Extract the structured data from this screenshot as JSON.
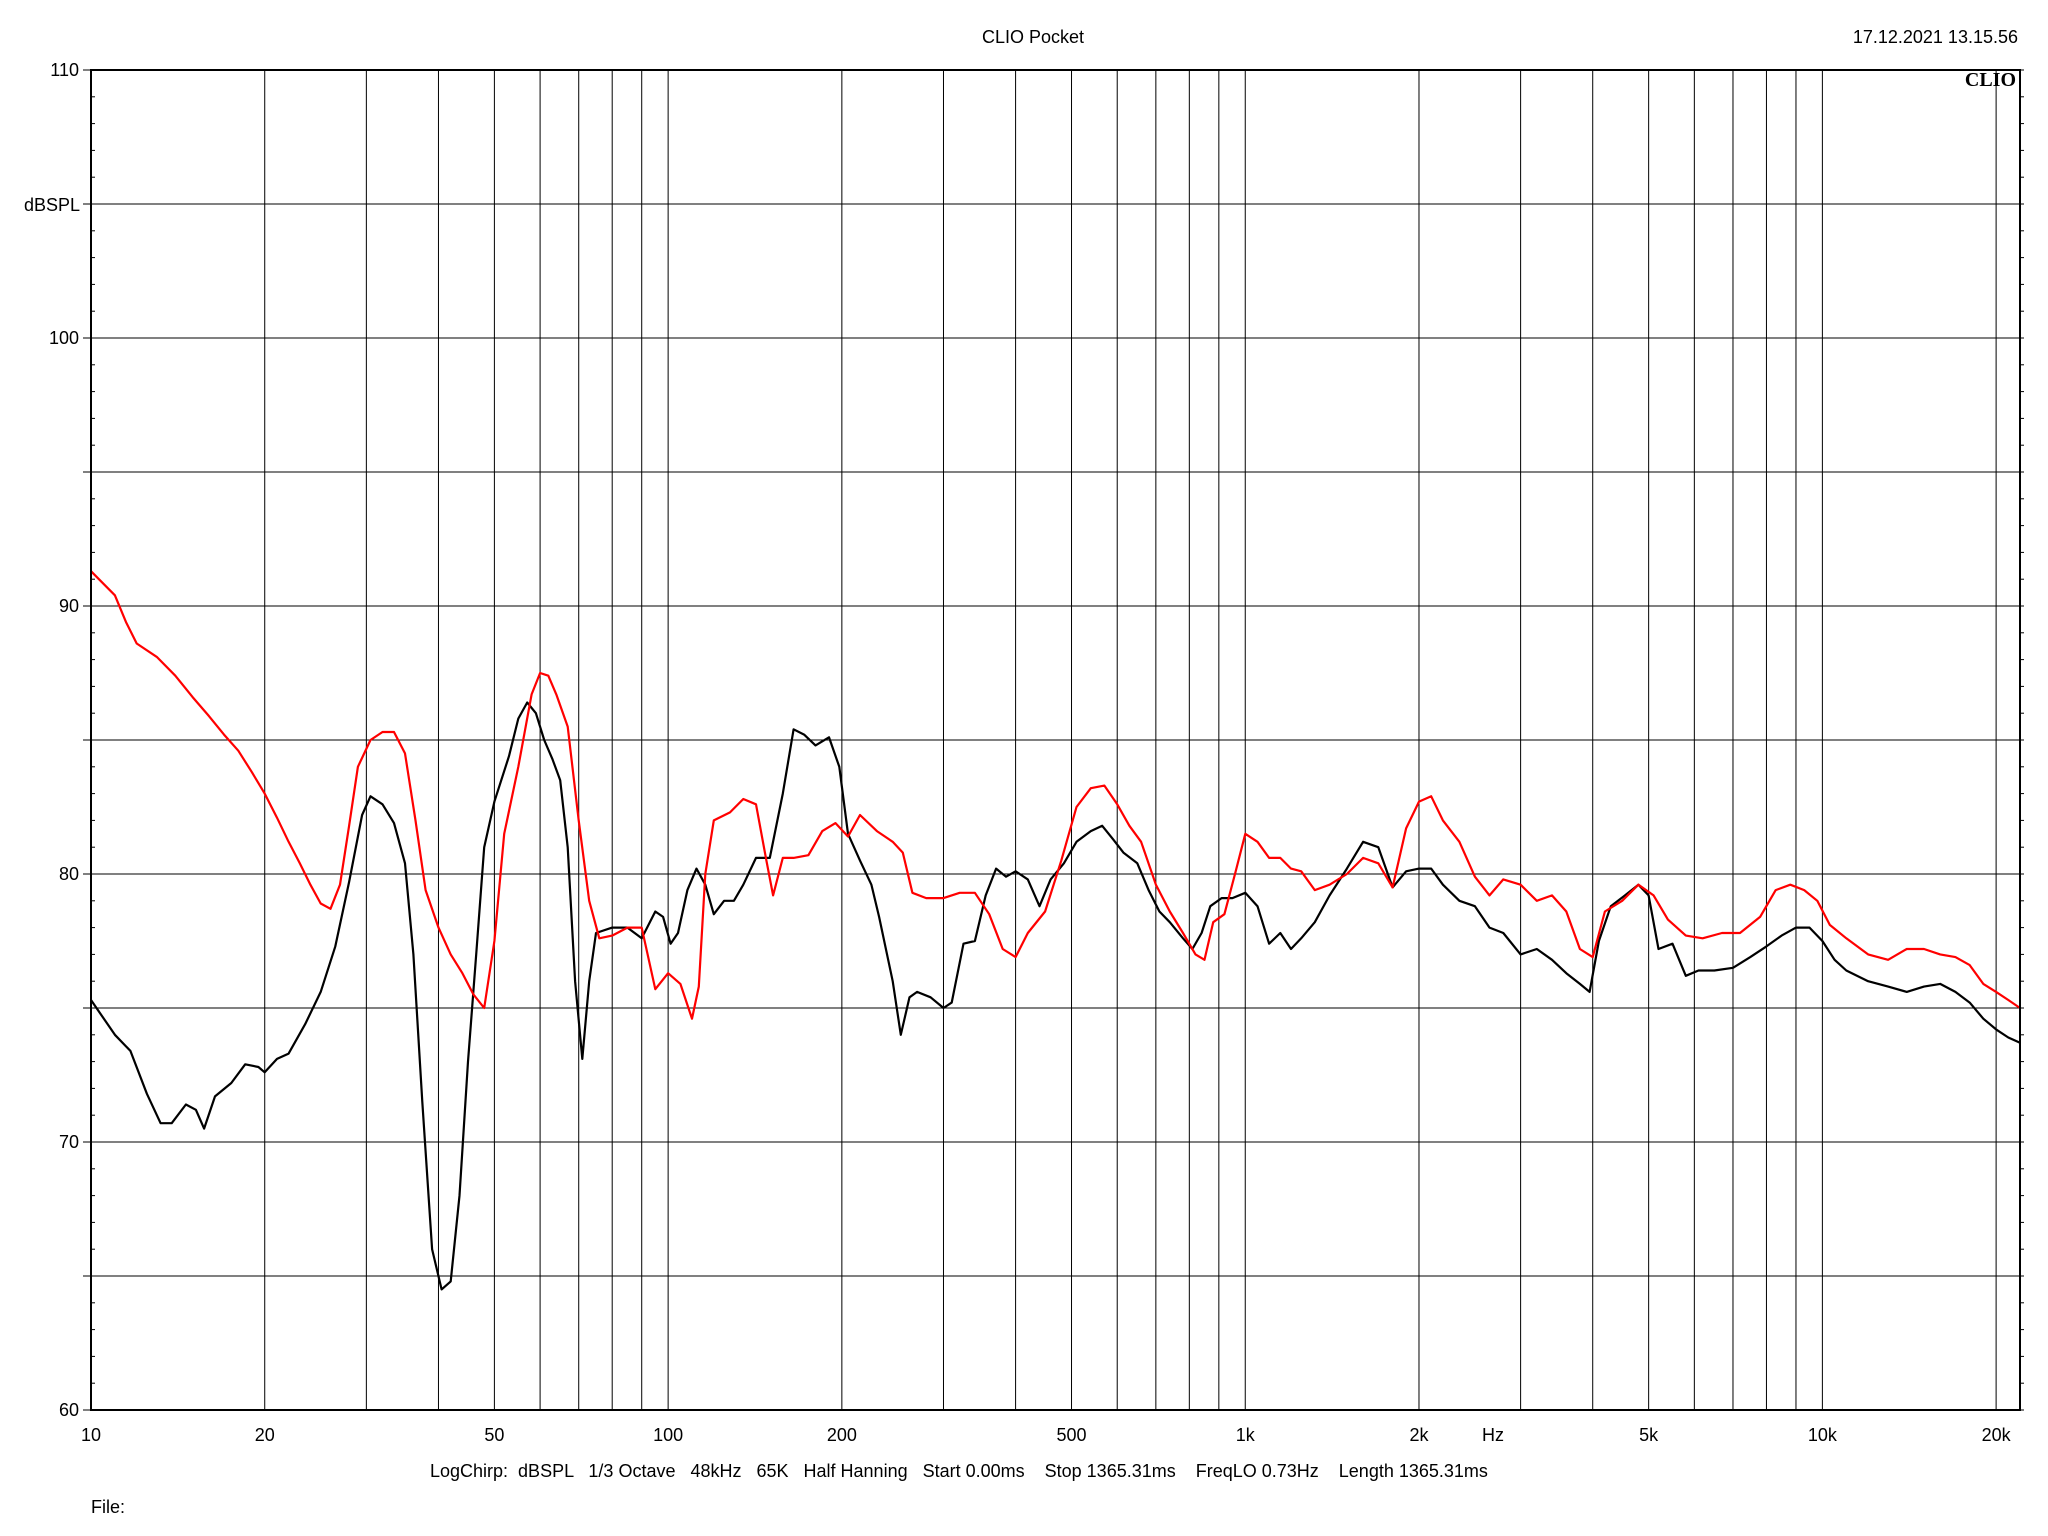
{
  "header": {
    "title": "CLIO Pocket",
    "timestamp": "17.12.2021 13.15.56",
    "logo": "CLIO"
  },
  "footer": {
    "settings": "LogChirp:  dBSPL   1/3 Octave   48kHz   65K   Half Hanning   Start 0.00ms    Stop 1365.31ms    FreqLO 0.73Hz    Length 1365.31ms",
    "file_label": "File:"
  },
  "chart_data": {
    "type": "line",
    "title": "CLIO Pocket",
    "xlabel": "Hz",
    "ylabel": "dBSPL",
    "x_scale": "log",
    "xlim": [
      10,
      22000
    ],
    "ylim": [
      60,
      110
    ],
    "grid": true,
    "y_ticks": [
      60,
      70,
      80,
      90,
      100,
      110
    ],
    "x_ticks": [
      {
        "value": 10,
        "label": "10"
      },
      {
        "value": 20,
        "label": "20"
      },
      {
        "value": 50,
        "label": "50"
      },
      {
        "value": 100,
        "label": "100"
      },
      {
        "value": 200,
        "label": "200"
      },
      {
        "value": 500,
        "label": "500"
      },
      {
        "value": 1000,
        "label": "1k"
      },
      {
        "value": 2000,
        "label": "2k"
      },
      {
        "value": 5000,
        "label": "5k"
      },
      {
        "value": 10000,
        "label": "10k"
      },
      {
        "value": 20000,
        "label": "20k"
      }
    ],
    "colors": {
      "black_trace": "#000000",
      "red_trace": "#ff0000",
      "grid": "#000000"
    },
    "series": [
      {
        "color": "#000000",
        "points": [
          [
            10,
            75.3
          ],
          [
            11,
            74.0
          ],
          [
            11.7,
            73.4
          ],
          [
            12.5,
            71.8
          ],
          [
            13.2,
            70.7
          ],
          [
            13.8,
            70.7
          ],
          [
            14.6,
            71.4
          ],
          [
            15.2,
            71.2
          ],
          [
            15.7,
            70.5
          ],
          [
            16.4,
            71.7
          ],
          [
            17.5,
            72.2
          ],
          [
            18.5,
            72.9
          ],
          [
            19.5,
            72.8
          ],
          [
            20,
            72.6
          ],
          [
            21,
            73.1
          ],
          [
            22,
            73.3
          ],
          [
            23.5,
            74.4
          ],
          [
            25,
            75.6
          ],
          [
            26.5,
            77.3
          ],
          [
            28,
            79.7
          ],
          [
            29.5,
            82.2
          ],
          [
            30.5,
            82.9
          ],
          [
            32,
            82.6
          ],
          [
            33.5,
            81.9
          ],
          [
            35,
            80.4
          ],
          [
            36.2,
            77.0
          ],
          [
            37.5,
            71.5
          ],
          [
            39,
            66.0
          ],
          [
            40.5,
            64.5
          ],
          [
            42,
            64.8
          ],
          [
            43.5,
            68.0
          ],
          [
            45,
            73.0
          ],
          [
            46.5,
            77.0
          ],
          [
            48,
            81.0
          ],
          [
            50,
            82.7
          ],
          [
            53,
            84.4
          ],
          [
            55,
            85.8
          ],
          [
            57,
            86.4
          ],
          [
            59,
            86.0
          ],
          [
            61,
            85.0
          ],
          [
            63,
            84.3
          ],
          [
            65,
            83.5
          ],
          [
            67,
            81.0
          ],
          [
            69,
            76.0
          ],
          [
            71,
            73.1
          ],
          [
            73,
            76.0
          ],
          [
            75,
            77.8
          ],
          [
            80,
            78.0
          ],
          [
            85,
            78.0
          ],
          [
            90,
            77.6
          ],
          [
            95,
            78.6
          ],
          [
            98,
            78.4
          ],
          [
            101,
            77.4
          ],
          [
            104,
            77.8
          ],
          [
            108,
            79.4
          ],
          [
            112,
            80.2
          ],
          [
            116,
            79.6
          ],
          [
            120,
            78.5
          ],
          [
            125,
            79.0
          ],
          [
            130,
            79.0
          ],
          [
            135,
            79.6
          ],
          [
            142,
            80.6
          ],
          [
            150,
            80.6
          ],
          [
            158,
            83.0
          ],
          [
            165,
            85.4
          ],
          [
            172,
            85.2
          ],
          [
            180,
            84.8
          ],
          [
            190,
            85.1
          ],
          [
            198,
            84.0
          ],
          [
            205,
            81.5
          ],
          [
            215,
            80.5
          ],
          [
            225,
            79.6
          ],
          [
            232,
            78.4
          ],
          [
            245,
            76.0
          ],
          [
            253,
            74.0
          ],
          [
            262,
            75.4
          ],
          [
            270,
            75.6
          ],
          [
            285,
            75.4
          ],
          [
            300,
            75.0
          ],
          [
            310,
            75.2
          ],
          [
            325,
            77.4
          ],
          [
            340,
            77.5
          ],
          [
            355,
            79.2
          ],
          [
            370,
            80.2
          ],
          [
            385,
            79.9
          ],
          [
            400,
            80.1
          ],
          [
            420,
            79.8
          ],
          [
            440,
            78.8
          ],
          [
            460,
            79.8
          ],
          [
            485,
            80.4
          ],
          [
            510,
            81.2
          ],
          [
            540,
            81.6
          ],
          [
            565,
            81.8
          ],
          [
            590,
            81.3
          ],
          [
            615,
            80.8
          ],
          [
            650,
            80.4
          ],
          [
            680,
            79.4
          ],
          [
            710,
            78.6
          ],
          [
            740,
            78.2
          ],
          [
            780,
            77.6
          ],
          [
            810,
            77.2
          ],
          [
            840,
            77.8
          ],
          [
            870,
            78.8
          ],
          [
            910,
            79.1
          ],
          [
            950,
            79.1
          ],
          [
            1000,
            79.3
          ],
          [
            1050,
            78.8
          ],
          [
            1100,
            77.4
          ],
          [
            1150,
            77.8
          ],
          [
            1200,
            77.2
          ],
          [
            1250,
            77.6
          ],
          [
            1320,
            78.2
          ],
          [
            1400,
            79.2
          ],
          [
            1500,
            80.2
          ],
          [
            1600,
            81.2
          ],
          [
            1700,
            81.0
          ],
          [
            1800,
            79.5
          ],
          [
            1900,
            80.1
          ],
          [
            2000,
            80.2
          ],
          [
            2100,
            80.2
          ],
          [
            2200,
            79.6
          ],
          [
            2350,
            79.0
          ],
          [
            2500,
            78.8
          ],
          [
            2650,
            78.0
          ],
          [
            2800,
            77.8
          ],
          [
            3000,
            77.0
          ],
          [
            3200,
            77.2
          ],
          [
            3400,
            76.8
          ],
          [
            3600,
            76.3
          ],
          [
            3800,
            75.9
          ],
          [
            3950,
            75.6
          ],
          [
            4100,
            77.5
          ],
          [
            4300,
            78.8
          ],
          [
            4550,
            79.2
          ],
          [
            4800,
            79.6
          ],
          [
            5000,
            79.2
          ],
          [
            5200,
            77.2
          ],
          [
            5500,
            77.4
          ],
          [
            5800,
            76.2
          ],
          [
            6100,
            76.4
          ],
          [
            6500,
            76.4
          ],
          [
            7000,
            76.5
          ],
          [
            7500,
            76.9
          ],
          [
            8000,
            77.3
          ],
          [
            8500,
            77.7
          ],
          [
            9000,
            78.0
          ],
          [
            9500,
            78.0
          ],
          [
            10000,
            77.5
          ],
          [
            10500,
            76.8
          ],
          [
            11000,
            76.4
          ],
          [
            12000,
            76.0
          ],
          [
            13000,
            75.8
          ],
          [
            14000,
            75.6
          ],
          [
            15000,
            75.8
          ],
          [
            16000,
            75.9
          ],
          [
            17000,
            75.6
          ],
          [
            18000,
            75.2
          ],
          [
            19000,
            74.6
          ],
          [
            20000,
            74.2
          ],
          [
            21000,
            73.9
          ],
          [
            22000,
            73.7
          ]
        ]
      },
      {
        "color": "#ff0000",
        "points": [
          [
            10,
            91.3
          ],
          [
            11,
            90.4
          ],
          [
            11.5,
            89.4
          ],
          [
            12,
            88.6
          ],
          [
            13,
            88.1
          ],
          [
            14,
            87.4
          ],
          [
            15,
            86.6
          ],
          [
            16,
            85.9
          ],
          [
            17,
            85.2
          ],
          [
            18,
            84.6
          ],
          [
            19,
            83.8
          ],
          [
            20,
            83.0
          ],
          [
            21,
            82.1
          ],
          [
            22,
            81.2
          ],
          [
            23,
            80.4
          ],
          [
            24,
            79.6
          ],
          [
            25,
            78.9
          ],
          [
            26,
            78.7
          ],
          [
            27,
            79.6
          ],
          [
            28,
            81.8
          ],
          [
            29,
            84.0
          ],
          [
            30.5,
            85.0
          ],
          [
            32,
            85.3
          ],
          [
            33.5,
            85.3
          ],
          [
            35,
            84.5
          ],
          [
            36.5,
            82.0
          ],
          [
            38,
            79.4
          ],
          [
            40,
            78.0
          ],
          [
            42,
            77.0
          ],
          [
            44,
            76.3
          ],
          [
            46,
            75.5
          ],
          [
            48,
            75.0
          ],
          [
            50,
            77.5
          ],
          [
            52,
            81.5
          ],
          [
            55,
            84.0
          ],
          [
            58,
            86.7
          ],
          [
            60,
            87.5
          ],
          [
            62,
            87.4
          ],
          [
            64,
            86.7
          ],
          [
            67,
            85.5
          ],
          [
            70,
            82.0
          ],
          [
            73,
            79.0
          ],
          [
            76,
            77.6
          ],
          [
            80,
            77.7
          ],
          [
            85,
            78.0
          ],
          [
            90,
            78.0
          ],
          [
            95,
            75.7
          ],
          [
            100,
            76.3
          ],
          [
            105,
            75.9
          ],
          [
            110,
            74.6
          ],
          [
            113,
            75.8
          ],
          [
            116,
            80.0
          ],
          [
            120,
            82.0
          ],
          [
            128,
            82.3
          ],
          [
            135,
            82.8
          ],
          [
            142,
            82.6
          ],
          [
            148,
            80.5
          ],
          [
            152,
            79.2
          ],
          [
            158,
            80.6
          ],
          [
            165,
            80.6
          ],
          [
            175,
            80.7
          ],
          [
            185,
            81.6
          ],
          [
            195,
            81.9
          ],
          [
            205,
            81.4
          ],
          [
            215,
            82.2
          ],
          [
            230,
            81.6
          ],
          [
            245,
            81.2
          ],
          [
            255,
            80.8
          ],
          [
            265,
            79.3
          ],
          [
            280,
            79.1
          ],
          [
            300,
            79.1
          ],
          [
            320,
            79.3
          ],
          [
            340,
            79.3
          ],
          [
            360,
            78.5
          ],
          [
            380,
            77.2
          ],
          [
            400,
            76.9
          ],
          [
            420,
            77.8
          ],
          [
            450,
            78.6
          ],
          [
            480,
            80.5
          ],
          [
            510,
            82.5
          ],
          [
            540,
            83.2
          ],
          [
            570,
            83.3
          ],
          [
            600,
            82.6
          ],
          [
            630,
            81.8
          ],
          [
            660,
            81.2
          ],
          [
            700,
            79.6
          ],
          [
            740,
            78.6
          ],
          [
            780,
            77.8
          ],
          [
            820,
            77.0
          ],
          [
            850,
            76.8
          ],
          [
            880,
            78.2
          ],
          [
            920,
            78.5
          ],
          [
            960,
            80.0
          ],
          [
            1000,
            81.5
          ],
          [
            1050,
            81.2
          ],
          [
            1100,
            80.6
          ],
          [
            1150,
            80.6
          ],
          [
            1200,
            80.2
          ],
          [
            1250,
            80.1
          ],
          [
            1320,
            79.4
          ],
          [
            1400,
            79.6
          ],
          [
            1500,
            80.0
          ],
          [
            1600,
            80.6
          ],
          [
            1700,
            80.4
          ],
          [
            1800,
            79.5
          ],
          [
            1900,
            81.7
          ],
          [
            2000,
            82.7
          ],
          [
            2100,
            82.9
          ],
          [
            2200,
            82.0
          ],
          [
            2350,
            81.2
          ],
          [
            2500,
            79.9
          ],
          [
            2650,
            79.2
          ],
          [
            2800,
            79.8
          ],
          [
            3000,
            79.6
          ],
          [
            3200,
            79.0
          ],
          [
            3400,
            79.2
          ],
          [
            3600,
            78.6
          ],
          [
            3800,
            77.2
          ],
          [
            4000,
            76.9
          ],
          [
            4200,
            78.6
          ],
          [
            4500,
            79.0
          ],
          [
            4800,
            79.6
          ],
          [
            5100,
            79.2
          ],
          [
            5400,
            78.3
          ],
          [
            5800,
            77.7
          ],
          [
            6200,
            77.6
          ],
          [
            6700,
            77.8
          ],
          [
            7200,
            77.8
          ],
          [
            7800,
            78.4
          ],
          [
            8300,
            79.4
          ],
          [
            8800,
            79.6
          ],
          [
            9300,
            79.4
          ],
          [
            9800,
            79.0
          ],
          [
            10300,
            78.1
          ],
          [
            11000,
            77.6
          ],
          [
            12000,
            77.0
          ],
          [
            13000,
            76.8
          ],
          [
            14000,
            77.2
          ],
          [
            15000,
            77.2
          ],
          [
            16000,
            77.0
          ],
          [
            17000,
            76.9
          ],
          [
            18000,
            76.6
          ],
          [
            19000,
            75.9
          ],
          [
            20000,
            75.6
          ],
          [
            21000,
            75.3
          ],
          [
            22000,
            75.0
          ]
        ]
      }
    ]
  }
}
